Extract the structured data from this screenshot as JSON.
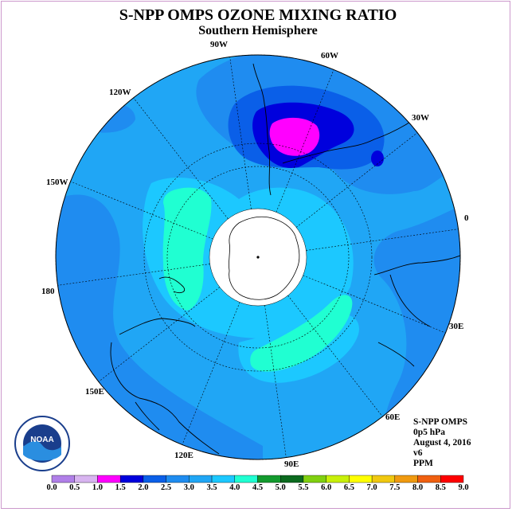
{
  "title": "S-NPP OMPS OZONE MIXING RATIO",
  "subtitle": "Southern Hemisphere",
  "info": [
    "S-NPP OMPS",
    "0p5 hPa",
    "August 4, 2016",
    "v6",
    "PPM"
  ],
  "longitude_labels": [
    "90W",
    "60W",
    "30W",
    "0",
    "30E",
    "60E",
    "90E",
    "120E",
    "150E",
    "180",
    "150W",
    "120W"
  ],
  "logo_text": "NOAA",
  "legend": {
    "ticks": [
      "0.0",
      "0.5",
      "1.0",
      "1.5",
      "2.0",
      "2.5",
      "3.0",
      "3.5",
      "4.0",
      "4.5",
      "5.0",
      "5.5",
      "6.0",
      "6.5",
      "7.0",
      "7.5",
      "8.0",
      "8.5",
      "9.0"
    ],
    "colors": [
      "#b07fe8",
      "#d8b4f0",
      "#ff00ff",
      "#0000dd",
      "#0a5fe8",
      "#1f8cf0",
      "#20a6f5",
      "#1cc8ff",
      "#20ffd2",
      "#139a2e",
      "#0b6a1e",
      "#80d010",
      "#c8f00a",
      "#ffff00",
      "#f0c810",
      "#f09a10",
      "#f06010",
      "#ff0000",
      "#8b5a3c"
    ]
  },
  "colors": {
    "background_field": "#20a6f5",
    "outer_low": "#1f8cf0",
    "minimum": "#ff00ff",
    "high": "#20ffd2",
    "pole_hole": "#ffffff"
  }
}
